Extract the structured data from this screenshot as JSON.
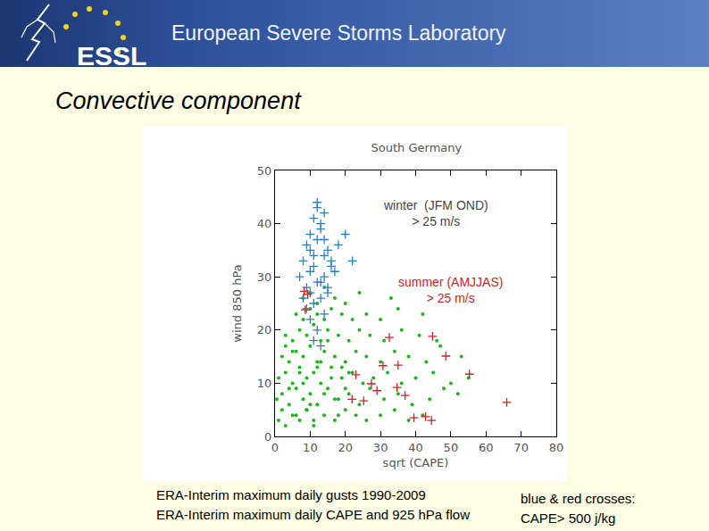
{
  "header": {
    "logo": "ESSL",
    "title": "European Severe Storms Laboratory"
  },
  "heading": "Convective component",
  "captions_left": [
    "ERA-Interim maximum daily gusts 1990-2009",
    "ERA-Interim maximum daily CAPE and 925 hPa flow"
  ],
  "captions_right": [
    "blue & red crosses:",
    "CAPE> 500 j/kg"
  ],
  "chart_data": {
    "type": "scatter",
    "title": "South Germany",
    "x_label": "sqrt (CAPE)",
    "y_label": "wind 850 hPa",
    "xlim": [
      0,
      80
    ],
    "ylim": [
      0,
      50
    ],
    "xticks": [
      0,
      10,
      20,
      30,
      40,
      50,
      60,
      70,
      80
    ],
    "yticks": [
      0,
      10,
      20,
      30,
      40,
      50
    ],
    "grid": false,
    "series": [
      {
        "color": "#22b322",
        "marker": "dot",
        "x": [
          1,
          3,
          5,
          7,
          9,
          11,
          14,
          17,
          20,
          23,
          26,
          30,
          34,
          38,
          42,
          0.5,
          2,
          4,
          6,
          8,
          10,
          12,
          15,
          18,
          21,
          24,
          27,
          31,
          35,
          39,
          44,
          48,
          52,
          1,
          3,
          5,
          7,
          9,
          11,
          13,
          16,
          19,
          22,
          25,
          28,
          32,
          36,
          40,
          45,
          50,
          55,
          2,
          4,
          6,
          8,
          10,
          12,
          14,
          17,
          20,
          23,
          26,
          30,
          34,
          38,
          43,
          47,
          53,
          3,
          5,
          7,
          9,
          11,
          13,
          15,
          18,
          21,
          24,
          27,
          31,
          36,
          41,
          46,
          6,
          8,
          10,
          12,
          14,
          16,
          19,
          22,
          26,
          30,
          35,
          42,
          8,
          10,
          12,
          14,
          17,
          20,
          24,
          33,
          2,
          4,
          6,
          8,
          10,
          12,
          14,
          16,
          18,
          20,
          5,
          9,
          13,
          17,
          21,
          3,
          7,
          11,
          15,
          19
        ],
        "values": [
          3,
          2,
          4,
          3,
          5,
          2,
          4,
          3,
          5,
          4,
          3,
          4,
          5,
          3,
          4,
          7,
          8,
          6,
          9,
          7,
          8,
          6,
          9,
          7,
          8,
          6,
          9,
          7,
          8,
          6,
          7,
          9,
          8,
          11,
          12,
          10,
          13,
          11,
          12,
          10,
          13,
          11,
          12,
          10,
          11,
          12,
          10,
          11,
          12,
          10,
          11,
          15,
          14,
          16,
          15,
          17,
          14,
          16,
          15,
          14,
          16,
          15,
          14,
          16,
          15,
          14,
          17,
          15,
          19,
          18,
          20,
          19,
          21,
          18,
          20,
          19,
          18,
          20,
          19,
          18,
          20,
          19,
          18,
          23,
          22,
          24,
          23,
          22,
          24,
          23,
          22,
          23,
          22,
          24,
          23,
          26,
          27,
          25,
          28,
          26,
          25,
          27,
          26,
          5,
          9,
          4,
          10,
          6,
          13,
          8,
          11,
          4,
          9,
          16,
          5,
          14,
          7,
          12,
          17,
          12,
          3,
          18,
          13
        ]
      },
      {
        "color": "#2a7fc8",
        "marker": "cross",
        "x": [
          7,
          8,
          9,
          10,
          11,
          12,
          13,
          14,
          15,
          16,
          9,
          10,
          11,
          12,
          13,
          14,
          8,
          10,
          12,
          14,
          16,
          18,
          9,
          11,
          13,
          15,
          17,
          10,
          12,
          14,
          11,
          13,
          20,
          22,
          12,
          15,
          10,
          13,
          11,
          14
        ],
        "values": [
          30,
          33,
          36,
          38,
          41,
          43,
          40,
          37,
          35,
          32,
          28,
          31,
          34,
          37,
          39,
          42,
          26,
          27,
          29,
          30,
          33,
          36,
          24,
          25,
          26,
          28,
          31,
          22,
          20,
          23,
          18,
          17,
          38,
          33,
          44,
          27,
          35,
          29,
          32,
          34
        ]
      },
      {
        "color": "#d42020",
        "marker": "cross",
        "x": [
          8.3,
          32.5,
          44.8,
          48.6,
          55.3,
          65.9,
          35,
          39.5,
          42.8,
          44.5,
          37,
          30.7,
          23,
          21.9,
          8.6,
          29,
          25.2,
          9.3,
          27.4,
          34.7
        ],
        "values": [
          27.3,
          18.6,
          18.8,
          15.1,
          11.7,
          6.4,
          13.4,
          3.5,
          3.7,
          3,
          7.7,
          13.3,
          11.6,
          7,
          23.8,
          8.6,
          6.7,
          26.7,
          9.9,
          9.2
        ]
      }
    ],
    "annotations": [
      {
        "lines": [
          "winter  (JFM OND)",
          "> 25 m/s"
        ],
        "x": 45.8,
        "y": 42,
        "color": "#444444"
      },
      {
        "lines": [
          "summer (AMJJAS)",
          "> 25 m/s"
        ],
        "x": 50,
        "y": 27.5,
        "color": "#d42020"
      }
    ]
  }
}
